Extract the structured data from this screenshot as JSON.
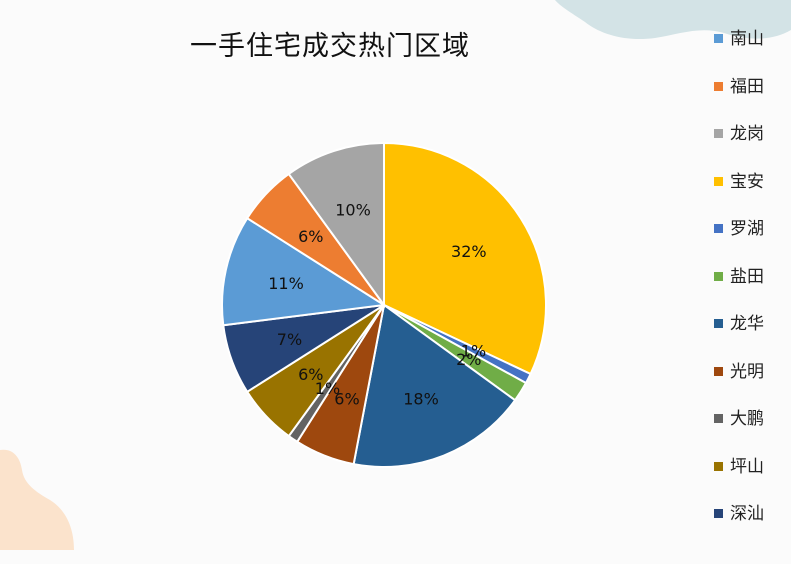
{
  "chart_data": {
    "type": "pie",
    "title": "一手住宅成交热门区域",
    "legend_position": "right",
    "slices": [
      {
        "label": "宝安",
        "value": 32,
        "display": "32%",
        "color": "#FFC000"
      },
      {
        "label": "罗湖",
        "value": 1,
        "display": "1%",
        "color": "#4472C4"
      },
      {
        "label": "盐田",
        "value": 2,
        "display": "2%",
        "color": "#70AD47"
      },
      {
        "label": "龙华",
        "value": 18,
        "display": "18%",
        "color": "#255E91"
      },
      {
        "label": "光明",
        "value": 6,
        "display": "6%",
        "color": "#9E480E"
      },
      {
        "label": "大鹏",
        "value": 1,
        "display": "1%",
        "color": "#636363"
      },
      {
        "label": "坪山",
        "value": 6,
        "display": "6%",
        "color": "#997300"
      },
      {
        "label": "深汕",
        "value": 7,
        "display": "7%",
        "color": "#264478"
      },
      {
        "label": "南山",
        "value": 11,
        "display": "11%",
        "color": "#5B9BD5"
      },
      {
        "label": "福田",
        "value": 6,
        "display": "6%",
        "color": "#ED7D31"
      },
      {
        "label": "龙岗",
        "value": 10,
        "display": "10%",
        "color": "#A5A5A5"
      }
    ],
    "legend_order": [
      "南山",
      "福田",
      "龙岗",
      "宝安",
      "罗湖",
      "盐田",
      "龙华",
      "光明",
      "大鹏",
      "坪山",
      "深汕"
    ]
  },
  "decor": {
    "top_blob_color": "#d3e3e6",
    "bottom_blob_color": "#fbe3cc"
  }
}
